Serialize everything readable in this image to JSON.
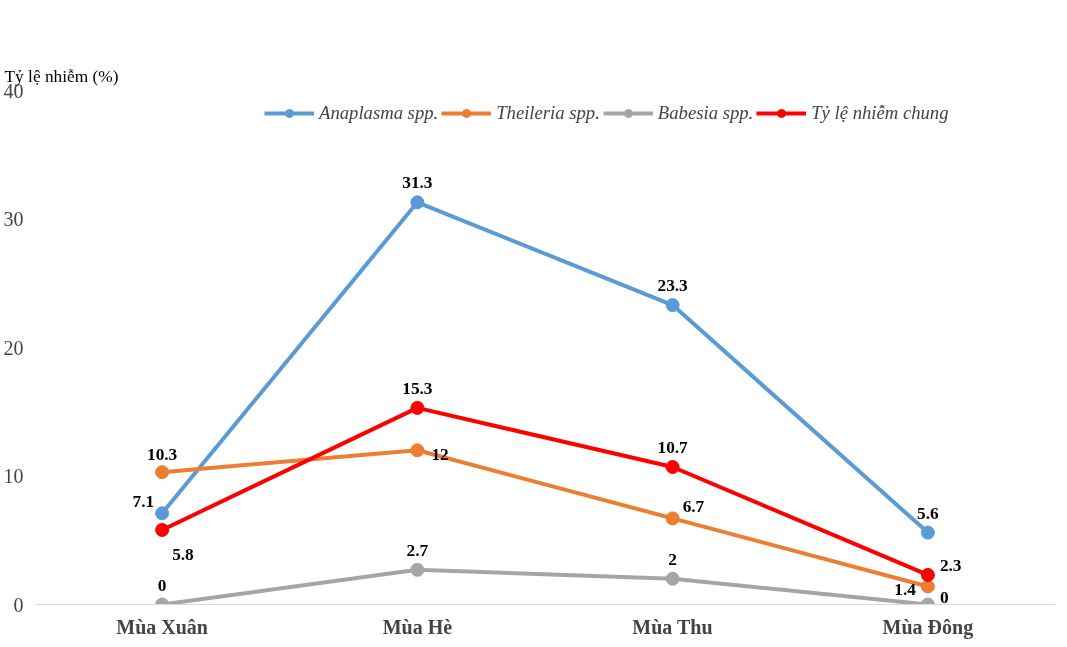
{
  "chart_data": {
    "type": "line",
    "annotations": [
      "Tỷ lệ nhiễm (%)"
    ],
    "categories": [
      "Mùa Xuân",
      "Mùa Hè",
      "Mùa Thu",
      "Mùa Đông"
    ],
    "series": [
      {
        "name": "Anaplasma spp.",
        "color": "#5b9bd5",
        "values": [
          7.1,
          31.3,
          23.3,
          5.6
        ]
      },
      {
        "name": "Theileria spp.",
        "color": "#ed7d31",
        "values": [
          10.3,
          12,
          6.7,
          1.4
        ]
      },
      {
        "name": "Babesia spp.",
        "color": "#a5a5a5",
        "values": [
          0,
          2.7,
          2,
          0
        ]
      },
      {
        "name": "Tỷ lệ nhiễm chung",
        "color": "#ff0000",
        "values": [
          5.8,
          15.3,
          10.7,
          2.3
        ]
      }
    ],
    "ylim": [
      0,
      40
    ],
    "yticks": [
      0,
      10,
      20,
      30,
      40
    ],
    "grid": false,
    "legend": "top",
    "marker": "circle",
    "line_style": "solid",
    "data_labels": true
  }
}
